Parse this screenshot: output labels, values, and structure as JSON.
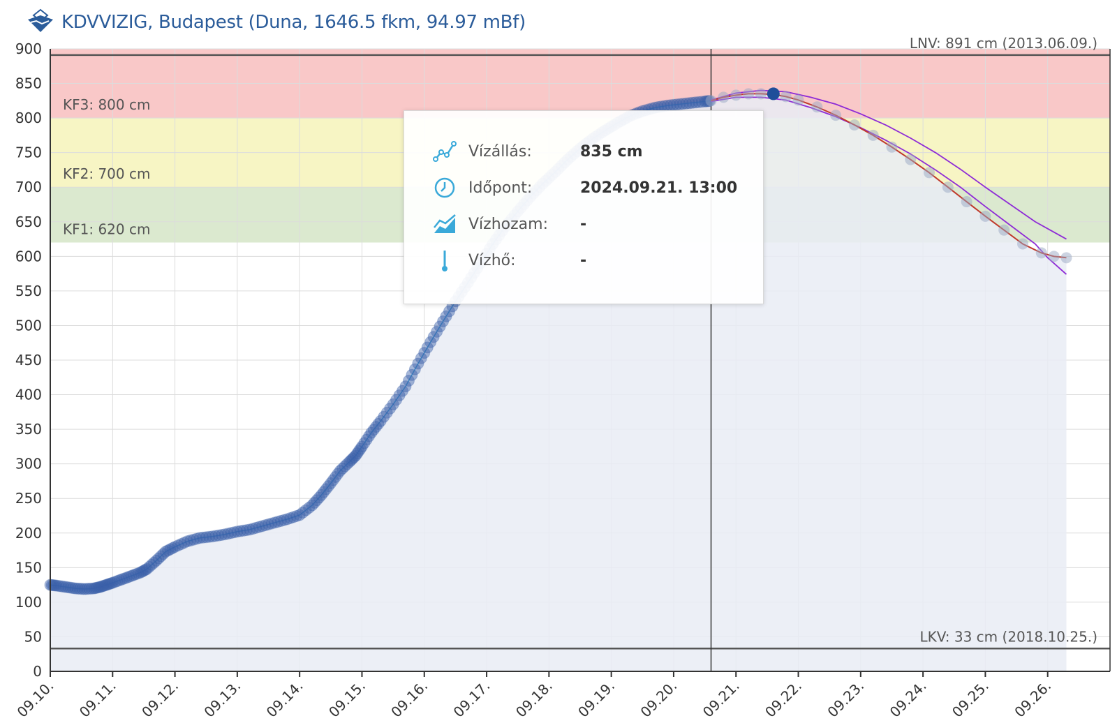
{
  "header": {
    "title": "KDVVIZIG, Budapest (Duna, 1646.5 fkm, 94.97 mBf)"
  },
  "tooltip": {
    "rows": [
      {
        "label": "Vízállás:",
        "value": "835 cm",
        "icon": "line-chart-icon"
      },
      {
        "label": "Időpont:",
        "value": "2024.09.21. 13:00",
        "icon": "clock-icon"
      },
      {
        "label": "Vízhozam:",
        "value": "-",
        "icon": "area-chart-icon"
      },
      {
        "label": "Vízhő:",
        "value": "-",
        "icon": "thermometer-icon"
      }
    ]
  },
  "chart_data": {
    "type": "line",
    "title": "KDVVIZIG, Budapest (Duna, 1646.5 fkm, 94.97 mBf)",
    "xlabel": "",
    "ylabel": "",
    "x_ticks": [
      "09.10.",
      "09.11.",
      "09.12.",
      "09.13.",
      "09.14.",
      "09.15.",
      "09.16.",
      "09.17.",
      "09.18.",
      "09.19.",
      "09.20.",
      "09.21.",
      "09.22.",
      "09.23.",
      "09.24.",
      "09.25.",
      "09.26."
    ],
    "y_ticks": [
      0,
      50,
      100,
      150,
      200,
      250,
      300,
      350,
      400,
      450,
      500,
      550,
      600,
      650,
      700,
      750,
      800,
      850,
      900
    ],
    "xlim": [
      0,
      17
    ],
    "ylim": [
      0,
      900
    ],
    "grid": true,
    "bands": [
      {
        "label": "KF1: 620 cm",
        "from": 620,
        "to": 700,
        "color": "#dbe9cf"
      },
      {
        "label": "KF2: 700 cm",
        "from": 700,
        "to": 800,
        "color": "#f7f5c4"
      },
      {
        "label": "KF3: 800 cm",
        "from": 800,
        "to": 900,
        "color": "#f9c8c8"
      }
    ],
    "reference_lines": [
      {
        "label": "LNV: 891 cm (2013.06.09.)",
        "value": 891
      },
      {
        "label": "LKV: 33 cm (2018.10.25.)",
        "value": 33
      }
    ],
    "current_time_x": 10.6,
    "colors": {
      "measured": "#3a5fa8",
      "forecast_line": "#c0392b",
      "forecast_band": "#8e2bd6",
      "area_fill": "#e9ecf4",
      "highlight": "#1f4e9a"
    },
    "series": [
      {
        "name": "",
        "kind": "measured",
        "x": [
          0.0,
          0.1,
          0.25,
          0.4,
          0.55,
          0.7,
          0.8,
          0.9,
          1.0,
          1.15,
          1.3,
          1.45,
          1.55,
          1.7,
          1.85,
          2.0,
          2.2,
          2.4,
          2.6,
          2.8,
          3.0,
          3.2,
          3.4,
          3.6,
          3.8,
          4.0,
          4.2,
          4.35,
          4.5,
          4.65,
          4.8,
          4.9,
          5.0,
          5.15,
          5.3,
          5.5,
          5.7,
          5.9,
          6.1,
          6.3,
          6.5,
          6.7,
          6.9,
          7.1,
          7.3,
          7.5,
          7.7,
          7.9,
          8.1,
          8.3,
          8.5,
          8.7,
          8.9,
          9.1,
          9.3,
          9.5,
          9.7,
          9.9,
          10.1,
          10.3,
          10.5,
          10.6
        ],
        "values": [
          125,
          124,
          122,
          120,
          119,
          120,
          122,
          125,
          128,
          133,
          138,
          143,
          148,
          160,
          173,
          180,
          188,
          193,
          195,
          198,
          202,
          205,
          210,
          215,
          220,
          226,
          240,
          255,
          272,
          290,
          303,
          312,
          325,
          345,
          362,
          386,
          412,
          445,
          476,
          506,
          535,
          562,
          590,
          618,
          643,
          665,
          686,
          705,
          722,
          740,
          756,
          770,
          782,
          793,
          803,
          810,
          815,
          818,
          820,
          822,
          824,
          825
        ]
      },
      {
        "name": "",
        "kind": "forecast",
        "x": [
          10.6,
          10.8,
          11.0,
          11.2,
          11.4,
          11.6,
          11.8,
          12.0,
          12.3,
          12.6,
          12.9,
          13.2,
          13.5,
          13.8,
          14.1,
          14.4,
          14.7,
          15.0,
          15.3,
          15.6,
          15.9,
          16.1,
          16.3
        ],
        "values": [
          825,
          830,
          833,
          835,
          835,
          834,
          831,
          826,
          816,
          804,
          790,
          775,
          758,
          740,
          721,
          700,
          679,
          658,
          638,
          618,
          605,
          600,
          598
        ]
      },
      {
        "name": "",
        "kind": "forecast_upper",
        "x": [
          10.6,
          11.0,
          11.4,
          11.8,
          12.2,
          12.6,
          13.0,
          13.4,
          13.8,
          14.2,
          14.6,
          15.0,
          15.4,
          15.8,
          16.0,
          16.3
        ],
        "values": [
          826,
          836,
          840,
          838,
          830,
          820,
          806,
          790,
          771,
          750,
          726,
          700,
          675,
          650,
          640,
          625
        ]
      },
      {
        "name": "",
        "kind": "forecast_lower",
        "x": [
          10.6,
          11.0,
          11.4,
          11.8,
          12.2,
          12.6,
          13.0,
          13.4,
          13.8,
          14.2,
          14.6,
          15.0,
          15.4,
          15.8,
          16.0,
          16.3
        ],
        "values": [
          824,
          830,
          830,
          826,
          815,
          802,
          786,
          768,
          748,
          725,
          700,
          672,
          645,
          618,
          598,
          574
        ]
      }
    ],
    "highlight_point": {
      "x": 11.6,
      "value": 835
    }
  }
}
